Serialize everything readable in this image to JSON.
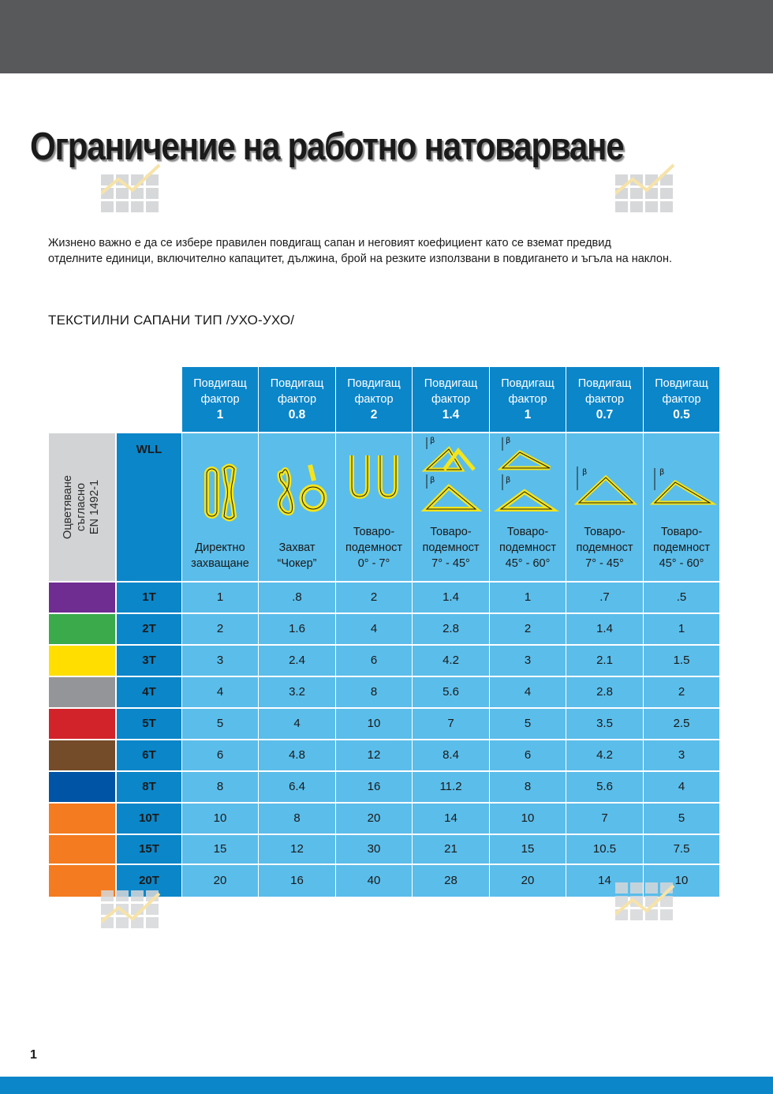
{
  "page": {
    "title": "Ограничение на работно натоварване",
    "intro_line1": "Жизнено важно е да се избере правилен повдигащ сапан и неговият коефициент като се вземат предвид",
    "intro_line2": "отделните единици, включително капацитет, дължина, брой на резките използвани в повдигането и ъгъла на наклон.",
    "subtitle": "ТЕКСТИЛНИ САПАНИ ТИП /УХО-УХО/",
    "page_number": "1"
  },
  "colors": {
    "top_bar": "#58595b",
    "accent_blue": "#0b86c9",
    "cell_blue": "#5bbdea",
    "sling_yellow": "#f4e51a"
  },
  "table": {
    "side_label_line1": "Оцветяване",
    "side_label_line2": "съгласно",
    "side_label_line3": "EN 1492-1",
    "wll_label": "WLL",
    "columns": [
      {
        "line1": "Повдигащ",
        "line2": "фактор",
        "factor": "1",
        "cap1": "Директно",
        "cap2": "захващане",
        "icon": "straight-sling-icon"
      },
      {
        "line1": "Повдигащ",
        "line2": "фактор",
        "factor": "0.8",
        "cap1": "Захват",
        "cap2": "“Чокер”",
        "icon": "choker-sling-icon"
      },
      {
        "line1": "Повдигащ",
        "line2": "фактор",
        "factor": "2",
        "cap1": "Товаро-подемност",
        "cap2": "0° - 7°",
        "icon": "basket-sling-icon"
      },
      {
        "line1": "Повдигащ",
        "line2": "фактор",
        "factor": "1.4",
        "cap1": "Товаро-подемност",
        "cap2": "7° - 45°",
        "icon": "basket-angle-icon"
      },
      {
        "line1": "Повдигащ",
        "line2": "фактор",
        "factor": "1",
        "cap1": "Товаро-подемност",
        "cap2": "45° - 60°",
        "icon": "basket-angle-wide-icon"
      },
      {
        "line1": "Повдигащ",
        "line2": "фактор",
        "factor": "0.7",
        "cap1": "Товаро-подемност",
        "cap2": "7° - 45°",
        "icon": "triangle-sling-icon"
      },
      {
        "line1": "Повдигащ",
        "line2": "фактор",
        "factor": "0.5",
        "cap1": "Товаро-подемност",
        "cap2": "45° - 60°",
        "icon": "triangle-sling-wide-icon"
      }
    ],
    "rows": [
      {
        "wll": "1T",
        "color": "#6f2c91",
        "values": [
          "1",
          ".8",
          "2",
          "1.4",
          "1",
          ".7",
          ".5"
        ]
      },
      {
        "wll": "2T",
        "color": "#3aaa4a",
        "values": [
          "2",
          "1.6",
          "4",
          "2.8",
          "2",
          "1.4",
          "1"
        ]
      },
      {
        "wll": "3T",
        "color": "#ffde00",
        "values": [
          "3",
          "2.4",
          "6",
          "4.2",
          "3",
          "2.1",
          "1.5"
        ]
      },
      {
        "wll": "4T",
        "color": "#939598",
        "values": [
          "4",
          "3.2",
          "8",
          "5.6",
          "4",
          "2.8",
          "2"
        ]
      },
      {
        "wll": "5T",
        "color": "#d2232a",
        "values": [
          "5",
          "4",
          "10",
          "7",
          "5",
          "3.5",
          "2.5"
        ]
      },
      {
        "wll": "6T",
        "color": "#754c29",
        "values": [
          "6",
          "4.8",
          "12",
          "8.4",
          "6",
          "4.2",
          "3"
        ]
      },
      {
        "wll": "8T",
        "color": "#0054a6",
        "values": [
          "8",
          "6.4",
          "16",
          "11.2",
          "8",
          "5.6",
          "4"
        ]
      },
      {
        "wll": "10T",
        "color": "#f47b20",
        "values": [
          "10",
          "8",
          "20",
          "14",
          "10",
          "7",
          "5"
        ]
      },
      {
        "wll": "15T",
        "color": "#f47b20",
        "values": [
          "15",
          "12",
          "30",
          "21",
          "15",
          "10.5",
          "7.5"
        ]
      },
      {
        "wll": "20T",
        "color": "#f47b20",
        "values": [
          "20",
          "16",
          "40",
          "28",
          "20",
          "14",
          "10"
        ]
      }
    ]
  }
}
